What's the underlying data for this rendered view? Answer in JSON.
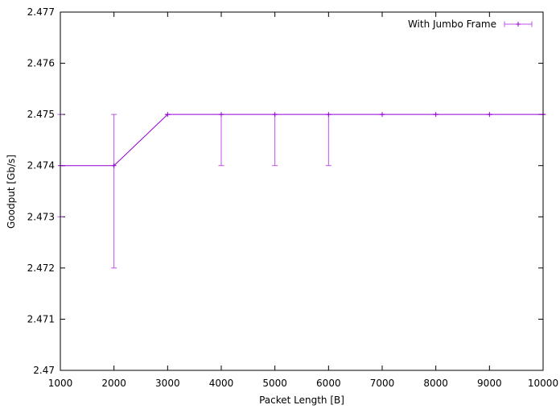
{
  "chart_data": {
    "type": "line",
    "title": "",
    "xlabel": "Packet Length [B]",
    "ylabel": "Goodput [Gb/s]",
    "xlim": [
      1000,
      10000
    ],
    "ylim": [
      2.47,
      2.477
    ],
    "x_ticks": [
      "1000",
      "2000",
      "3000",
      "4000",
      "5000",
      "6000",
      "7000",
      "8000",
      "9000",
      "10000"
    ],
    "x_tick_values": [
      1000,
      2000,
      3000,
      4000,
      5000,
      6000,
      7000,
      8000,
      9000,
      10000
    ],
    "y_ticks": [
      "2.47",
      "2.471",
      "2.472",
      "2.473",
      "2.474",
      "2.475",
      "2.476",
      "2.477"
    ],
    "y_tick_values": [
      2.47,
      2.471,
      2.472,
      2.473,
      2.474,
      2.475,
      2.476,
      2.477
    ],
    "grid": false,
    "legend_position": "top-right",
    "series": [
      {
        "name": "With Jumbo Frame",
        "color": "#9400d3",
        "errorbar_color": "#c050e8",
        "x": [
          1000,
          2000,
          3000,
          4000,
          5000,
          6000,
          7000,
          8000,
          9000,
          10000
        ],
        "y": [
          2.474,
          2.474,
          2.475,
          2.475,
          2.475,
          2.475,
          2.475,
          2.475,
          2.475,
          2.475
        ],
        "y_low": [
          2.473,
          2.472,
          2.475,
          2.474,
          2.474,
          2.474,
          2.475,
          2.475,
          2.475,
          2.475
        ],
        "y_high": [
          2.475,
          2.475,
          2.475,
          2.475,
          2.475,
          2.475,
          2.475,
          2.475,
          2.475,
          2.475
        ]
      }
    ]
  }
}
